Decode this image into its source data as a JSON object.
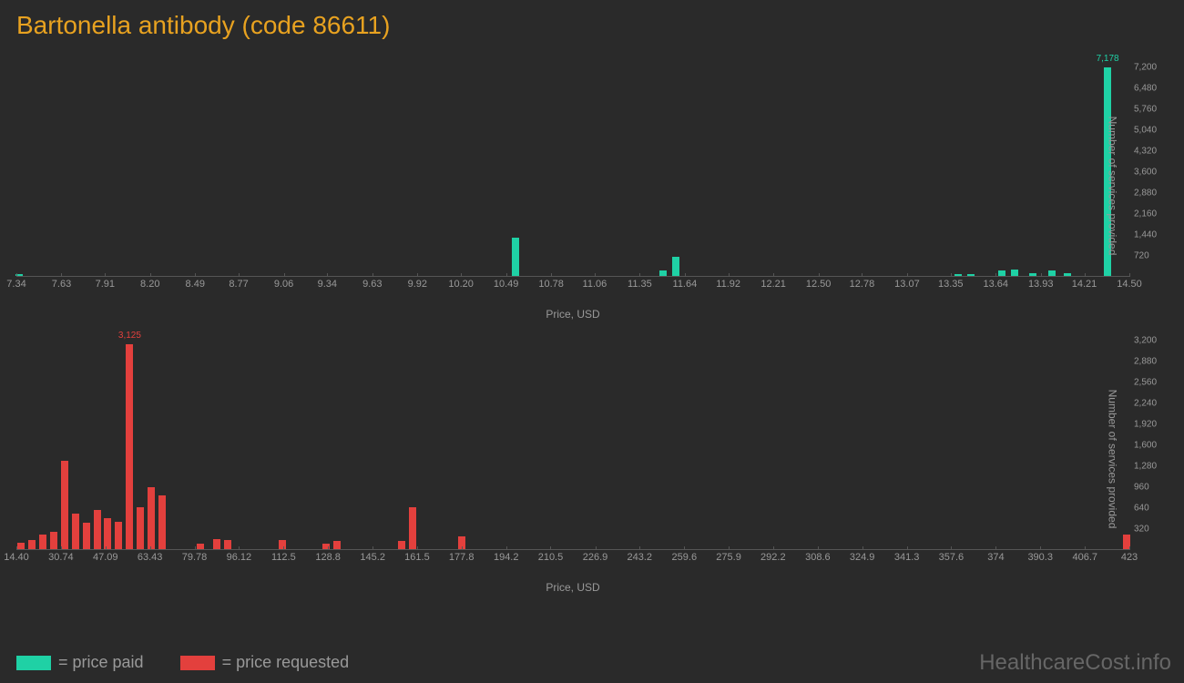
{
  "title": "Bartonella antibody (code 86611)",
  "colors": {
    "paid": "#1fd1a5",
    "requested": "#e3403d",
    "background": "#2a2a2a",
    "axis": "#555555",
    "text": "#999999",
    "title": "#e8a220"
  },
  "chart1": {
    "type": "bar",
    "xlabel": "Price, USD",
    "ylabel": "Number of services provided",
    "x_ticks": [
      "7.34",
      "7.63",
      "7.91",
      "8.20",
      "8.49",
      "8.77",
      "9.06",
      "9.34",
      "9.63",
      "9.92",
      "10.20",
      "10.49",
      "10.78",
      "11.06",
      "11.35",
      "11.64",
      "11.92",
      "12.21",
      "12.50",
      "12.78",
      "13.07",
      "13.35",
      "13.64",
      "13.93",
      "14.21",
      "14.50"
    ],
    "x_min": 7.34,
    "x_max": 14.5,
    "y_ticks": [
      720,
      1440,
      2160,
      2880,
      3600,
      4320,
      5040,
      5760,
      6480,
      7200
    ],
    "y_max": 7200,
    "bars": [
      {
        "x": 7.36,
        "y": 60
      },
      {
        "x": 10.55,
        "y": 1300
      },
      {
        "x": 11.5,
        "y": 200
      },
      {
        "x": 11.58,
        "y": 650
      },
      {
        "x": 13.4,
        "y": 60
      },
      {
        "x": 13.48,
        "y": 60
      },
      {
        "x": 13.68,
        "y": 180
      },
      {
        "x": 13.76,
        "y": 220
      },
      {
        "x": 13.88,
        "y": 80
      },
      {
        "x": 14.0,
        "y": 200
      },
      {
        "x": 14.1,
        "y": 80
      },
      {
        "x": 14.36,
        "y": 7178,
        "label": "7,178"
      }
    ],
    "bar_color": "#1fd1a5",
    "label_color": "#1fd1a5"
  },
  "chart2": {
    "type": "bar",
    "xlabel": "Price, USD",
    "ylabel": "Number of services provided",
    "x_ticks": [
      "14.40",
      "30.74",
      "47.09",
      "63.43",
      "79.78",
      "96.12",
      "112.5",
      "128.8",
      "145.2",
      "161.5",
      "177.8",
      "194.2",
      "210.5",
      "226.9",
      "243.2",
      "259.6",
      "275.9",
      "292.2",
      "308.6",
      "324.9",
      "341.3",
      "357.6",
      "374",
      "390.3",
      "406.7",
      "423"
    ],
    "x_min": 14.4,
    "x_max": 423,
    "y_ticks": [
      320,
      640,
      960,
      1280,
      1600,
      1920,
      2240,
      2560,
      2880,
      3200
    ],
    "y_max": 3200,
    "bars": [
      {
        "x": 16,
        "y": 100
      },
      {
        "x": 20,
        "y": 140
      },
      {
        "x": 24,
        "y": 220
      },
      {
        "x": 28,
        "y": 260
      },
      {
        "x": 32,
        "y": 1350
      },
      {
        "x": 36,
        "y": 540
      },
      {
        "x": 40,
        "y": 400
      },
      {
        "x": 44,
        "y": 600
      },
      {
        "x": 48,
        "y": 480
      },
      {
        "x": 52,
        "y": 420
      },
      {
        "x": 56,
        "y": 3125,
        "label": "3,125"
      },
      {
        "x": 60,
        "y": 640
      },
      {
        "x": 64,
        "y": 940
      },
      {
        "x": 68,
        "y": 820
      },
      {
        "x": 82,
        "y": 90
      },
      {
        "x": 88,
        "y": 150
      },
      {
        "x": 92,
        "y": 140
      },
      {
        "x": 112,
        "y": 140
      },
      {
        "x": 128,
        "y": 90
      },
      {
        "x": 132,
        "y": 120
      },
      {
        "x": 156,
        "y": 120
      },
      {
        "x": 160,
        "y": 640
      },
      {
        "x": 178,
        "y": 200
      },
      {
        "x": 422,
        "y": 220
      }
    ],
    "bar_color": "#e3403d",
    "label_color": "#e3403d"
  },
  "legend": [
    {
      "color": "#1fd1a5",
      "label": "= price paid"
    },
    {
      "color": "#e3403d",
      "label": "= price requested"
    }
  ],
  "watermark": "HealthcareCost.info"
}
